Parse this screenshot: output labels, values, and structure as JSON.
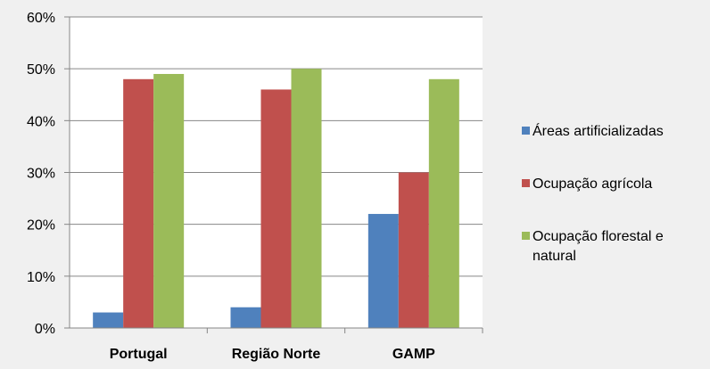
{
  "chart_data": {
    "type": "bar",
    "categories": [
      "Portugal",
      "Região Norte",
      "GAMP"
    ],
    "series": [
      {
        "name": "Áreas artificializadas",
        "values": [
          3,
          4,
          22
        ],
        "color": "#4f81bd"
      },
      {
        "name": "Ocupação agrícola",
        "values": [
          48,
          46,
          30
        ],
        "color": "#c0504d"
      },
      {
        "name": "Ocupação florestal e natural",
        "values": [
          49,
          50,
          48
        ],
        "color": "#9bbb59"
      }
    ],
    "yticks": [
      "0%",
      "10%",
      "20%",
      "30%",
      "40%",
      "50%",
      "60%"
    ],
    "ylim": [
      0,
      60
    ],
    "grid": true,
    "legend_position": "right"
  }
}
